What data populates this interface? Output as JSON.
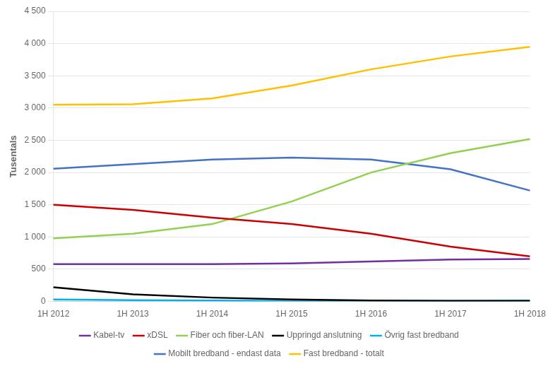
{
  "chart_data": {
    "type": "line",
    "y_label": "Tusentals",
    "categories": [
      "1H 2012",
      "1H 2013",
      "1H 2014",
      "1H 2015",
      "1H 2016",
      "1H 2017",
      "1H 2018"
    ],
    "series": [
      {
        "name": "Kabel-tv",
        "color": "#7030a0",
        "values": [
          580,
          580,
          580,
          590,
          620,
          650,
          660
        ]
      },
      {
        "name": "xDSL",
        "color": "#cc0000",
        "values": [
          1500,
          1420,
          1300,
          1200,
          1050,
          850,
          700
        ]
      },
      {
        "name": "Fiber och fiber-LAN",
        "color": "#92d050",
        "values": [
          980,
          1050,
          1200,
          1550,
          2000,
          2300,
          2520
        ]
      },
      {
        "name": "Uppringd anslutning",
        "color": "#000000",
        "values": [
          220,
          110,
          60,
          30,
          15,
          10,
          8
        ]
      },
      {
        "name": "Övrig fast bredband",
        "color": "#00b0f0",
        "values": [
          30,
          20,
          15,
          10,
          10,
          10,
          15
        ]
      },
      {
        "name": "Mobilt bredband - endast data",
        "color": "#4472c4",
        "values": [
          2060,
          2130,
          2200,
          2230,
          2200,
          2050,
          1720
        ]
      },
      {
        "name": "Fast bredband - totalt",
        "color": "#ffc000",
        "values": [
          3050,
          3060,
          3150,
          3350,
          3600,
          3800,
          3950
        ]
      }
    ],
    "ylim": [
      0,
      4500
    ],
    "yticks": [
      0,
      500,
      {
        "value": 1000,
        "label": "1 000"
      },
      {
        "value": 1500,
        "label": "1 500"
      },
      {
        "value": 2000,
        "label": "2 000"
      },
      {
        "value": 2500,
        "label": "2 500"
      },
      {
        "value": 3000,
        "label": "3 000"
      },
      {
        "value": 3500,
        "label": "3 500"
      },
      {
        "value": 4000,
        "label": "4 000"
      },
      {
        "value": 4500,
        "label": "4 500"
      }
    ],
    "grid": true,
    "legend": "bottom"
  }
}
